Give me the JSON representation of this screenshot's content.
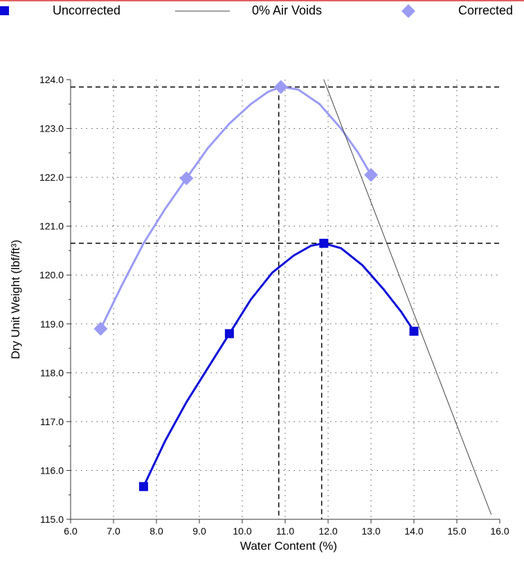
{
  "legend": {
    "uncorrected": "Uncorrected",
    "air_voids": "0% Air Voids",
    "corrected": "Corrected"
  },
  "colors": {
    "uncorrected": "#0b0bd9",
    "corrected": "#9b9bf5",
    "air_voids": "#444444",
    "grid": "#555555",
    "topline": "#e06060"
  },
  "chart_data": {
    "type": "line",
    "xlabel": "Water Content (%)",
    "ylabel": "Dry Unit Weight (lbf/ft³)",
    "xlim": [
      6.0,
      16.0
    ],
    "ylim": [
      115.0,
      124.0
    ],
    "xticks": [
      "6.0",
      "7.0",
      "8.0",
      "9.0",
      "10.0",
      "11.0",
      "12.0",
      "13.0",
      "14.0",
      "15.0",
      "16.0"
    ],
    "yticks": [
      "115.0",
      "116.0",
      "117.0",
      "118.0",
      "119.0",
      "120.0",
      "121.0",
      "122.0",
      "123.0",
      "124.0"
    ],
    "grid": true,
    "legend_position": "top",
    "series": [
      {
        "name": "Uncorrected",
        "marker": "square",
        "points": [
          [
            7.7,
            115.67
          ],
          [
            9.7,
            118.8
          ],
          [
            11.9,
            120.65
          ],
          [
            14.0,
            118.85
          ]
        ],
        "curve": [
          [
            7.7,
            115.67
          ],
          [
            8.2,
            116.6
          ],
          [
            8.7,
            117.4
          ],
          [
            9.2,
            118.1
          ],
          [
            9.7,
            118.8
          ],
          [
            10.2,
            119.5
          ],
          [
            10.7,
            120.05
          ],
          [
            11.2,
            120.4
          ],
          [
            11.6,
            120.6
          ],
          [
            11.9,
            120.65
          ],
          [
            12.3,
            120.55
          ],
          [
            12.8,
            120.2
          ],
          [
            13.3,
            119.7
          ],
          [
            13.7,
            119.25
          ],
          [
            14.0,
            118.85
          ]
        ],
        "optimum": [
          11.85,
          120.65
        ]
      },
      {
        "name": "Corrected",
        "marker": "diamond",
        "points": [
          [
            6.7,
            118.9
          ],
          [
            8.7,
            121.98
          ],
          [
            10.9,
            123.85
          ],
          [
            13.0,
            122.05
          ]
        ],
        "curve": [
          [
            6.7,
            118.9
          ],
          [
            7.2,
            119.8
          ],
          [
            7.7,
            120.65
          ],
          [
            8.2,
            121.35
          ],
          [
            8.7,
            121.98
          ],
          [
            9.2,
            122.6
          ],
          [
            9.7,
            123.1
          ],
          [
            10.2,
            123.5
          ],
          [
            10.6,
            123.75
          ],
          [
            10.9,
            123.85
          ],
          [
            11.3,
            123.8
          ],
          [
            11.8,
            123.5
          ],
          [
            12.3,
            123.0
          ],
          [
            12.7,
            122.5
          ],
          [
            13.0,
            122.05
          ]
        ],
        "optimum": [
          10.85,
          123.85
        ]
      },
      {
        "name": "0% Air Voids",
        "marker": "none",
        "curve": [
          [
            11.9,
            124.0
          ],
          [
            15.8,
            115.1
          ]
        ]
      }
    ]
  }
}
